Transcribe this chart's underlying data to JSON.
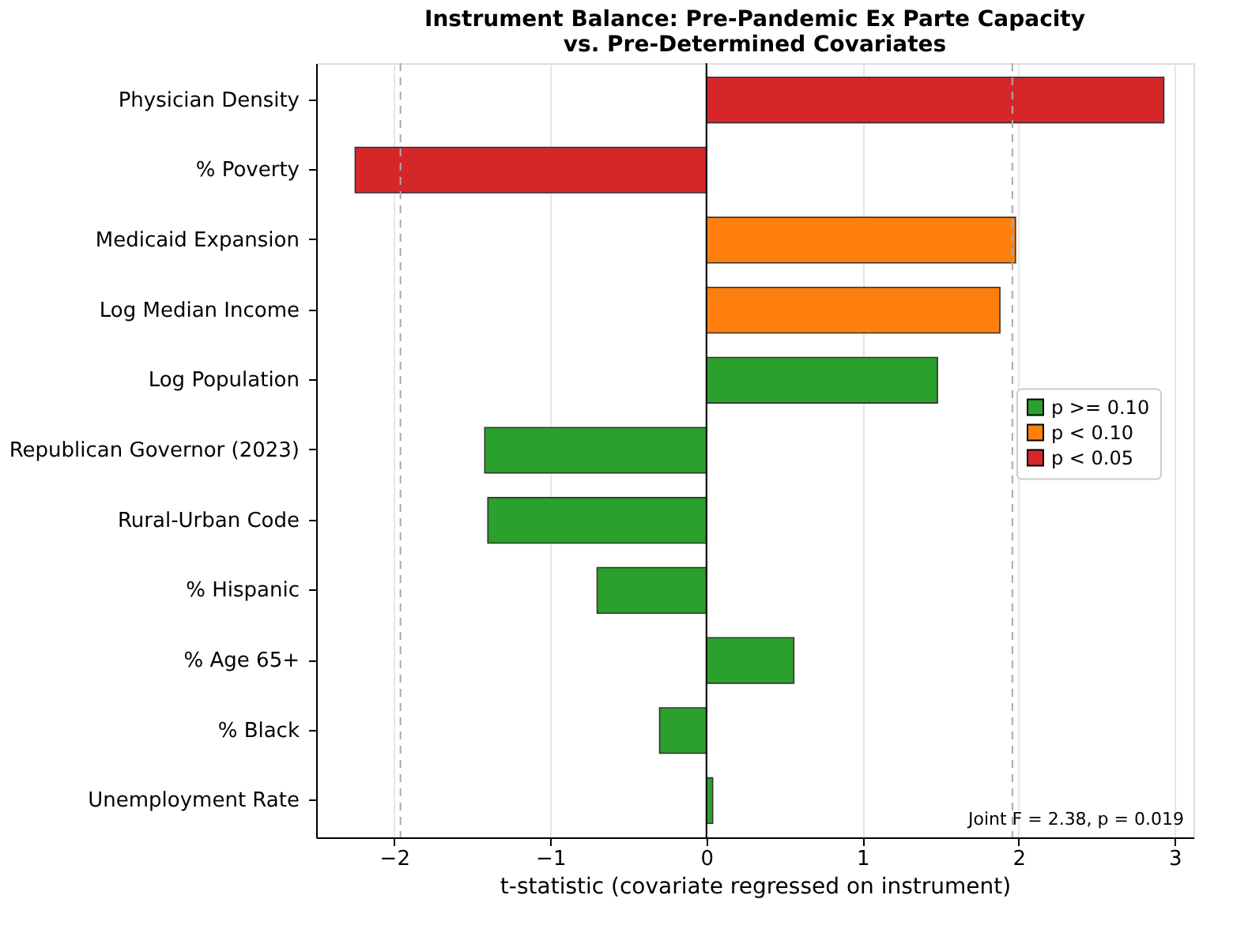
{
  "chart_data": {
    "type": "bar",
    "orientation": "horizontal",
    "title": "Instrument Balance: Pre-Pandemic Ex Parte Capacity\nvs. Pre-Determined Covariates",
    "xlabel": "t-statistic (covariate regressed on instrument)",
    "categories": [
      "Physician Density",
      "% Poverty",
      "Medicaid Expansion",
      "Log Median Income",
      "Log Population",
      "Republican Governor (2023)",
      "Rural-Urban Code",
      "% Hispanic",
      "% Age 65+",
      "% Black",
      "Unemployment Rate"
    ],
    "series": [
      {
        "name": "p >= 0.10",
        "color": "#2ca02c",
        "values": [
          null,
          null,
          null,
          null,
          1.48,
          -1.42,
          -1.4,
          -0.7,
          0.56,
          -0.3,
          0.04
        ]
      },
      {
        "name": "p < 0.10",
        "color": "#ff7f0e",
        "values": [
          null,
          null,
          1.98,
          1.88,
          null,
          null,
          null,
          null,
          null,
          null,
          null
        ]
      },
      {
        "name": "p < 0.05",
        "color": "#d62728",
        "values": [
          2.93,
          -2.25,
          null,
          null,
          null,
          null,
          null,
          null,
          null,
          null,
          null
        ]
      }
    ],
    "xlim": [
      -2.5,
      3.12
    ],
    "xticks": [
      -2,
      -1,
      0,
      1,
      2,
      3
    ],
    "ref_lines": [
      {
        "axis": "x",
        "value": -1.96,
        "color": "#aaaaaa",
        "line_style": "dashed"
      },
      {
        "axis": "x",
        "value": 1.96,
        "color": "#aaaaaa",
        "line_style": "dashed"
      },
      {
        "axis": "x",
        "value": 0,
        "color": "#000000",
        "line_style": "solid"
      }
    ],
    "annotations": [
      "Joint F = 2.38, p = 0.019"
    ],
    "grid": "x",
    "legend": "right"
  }
}
